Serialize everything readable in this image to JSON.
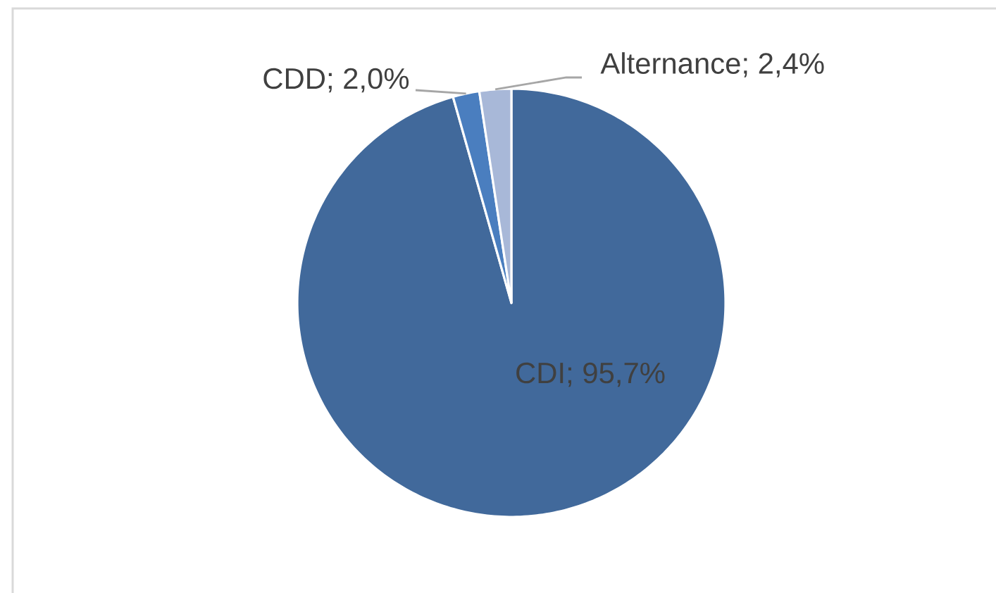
{
  "chart_data": {
    "type": "pie",
    "categories": [
      "CDI",
      "CDD",
      "Alternance"
    ],
    "values": [
      95.7,
      2.0,
      2.4
    ],
    "value_labels": [
      "; 95,7%",
      "; 2,0%",
      "; 2,4%"
    ],
    "colors": [
      "#41699b",
      "#4a7ebf",
      "#a8b8d8"
    ]
  }
}
